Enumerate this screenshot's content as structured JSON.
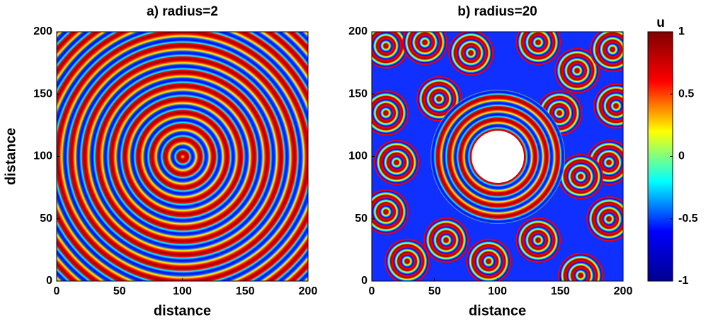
{
  "chart_data": [
    {
      "type": "heatmap",
      "title": "a) radius=2",
      "xlabel": "distance",
      "ylabel": "distance",
      "xlim": [
        0,
        200
      ],
      "ylim": [
        0,
        200
      ],
      "xticks": [
        0,
        50,
        100,
        150,
        200
      ],
      "yticks": [
        0,
        50,
        100,
        150,
        200
      ]
    },
    {
      "type": "heatmap",
      "title": "b) radius=20",
      "xlabel": "distance",
      "xlim": [
        0,
        200
      ],
      "ylim": [
        0,
        200
      ],
      "xticks": [
        0,
        50,
        100,
        150,
        200
      ],
      "yticks": [
        0,
        50,
        100,
        150,
        200
      ]
    },
    {
      "type": "colorbar",
      "title": "u",
      "ylim": [
        -1,
        1
      ],
      "yticks": [
        -1,
        -0.5,
        0,
        0.5,
        1
      ],
      "colors": [
        "#00008f",
        "#0000ff",
        "#00ffff",
        "#ffff00",
        "#ff0000",
        "#800000"
      ]
    }
  ]
}
